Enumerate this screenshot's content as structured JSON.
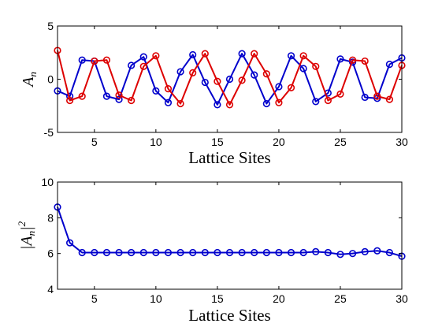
{
  "chart_data": [
    {
      "type": "line",
      "xlabel": "Lattice Sites",
      "ylabel": {
        "base": "A",
        "sub": "n"
      },
      "xlim": [
        2,
        30
      ],
      "ylim": [
        -5,
        5
      ],
      "xticks": [
        "5",
        "10",
        "15",
        "20",
        "25",
        "30"
      ],
      "yticks": [
        "5",
        "0",
        "-5"
      ],
      "grid": false,
      "x": [
        2,
        3,
        4,
        5,
        6,
        7,
        8,
        9,
        10,
        11,
        12,
        13,
        14,
        15,
        16,
        17,
        18,
        19,
        20,
        21,
        22,
        23,
        24,
        25,
        26,
        27,
        28,
        29,
        30
      ],
      "series": [
        {
          "color": "#0000cc",
          "marker": "circle",
          "values": [
            -1.1,
            -1.6,
            1.8,
            1.7,
            -1.6,
            -1.9,
            1.3,
            2.1,
            -1.1,
            -2.2,
            0.7,
            2.3,
            -0.3,
            -2.4,
            0.0,
            2.4,
            0.4,
            -2.3,
            -0.7,
            2.2,
            1.0,
            -2.1,
            -1.3,
            1.9,
            1.6,
            -1.7,
            -1.8,
            1.4,
            2.0
          ]
        },
        {
          "color": "#dd0000",
          "marker": "circle",
          "values": [
            2.7,
            -2.0,
            -1.6,
            1.7,
            1.8,
            -1.5,
            -2.0,
            1.2,
            2.2,
            -0.9,
            -2.3,
            0.6,
            2.4,
            -0.2,
            -2.4,
            -0.1,
            2.4,
            0.5,
            -2.2,
            -0.8,
            2.2,
            1.2,
            -2.0,
            -1.4,
            1.8,
            1.7,
            -1.6,
            -1.9,
            1.3
          ]
        }
      ]
    },
    {
      "type": "line",
      "xlabel": "Lattice Sites",
      "ylabel": {
        "base": "|A",
        "sub": "n",
        "tail": "|",
        "sup": "2"
      },
      "xlim": [
        2,
        30
      ],
      "ylim": [
        4,
        10
      ],
      "xticks": [
        "5",
        "10",
        "15",
        "20",
        "25",
        "30"
      ],
      "yticks": [
        "10",
        "8",
        "6",
        "4"
      ],
      "grid": false,
      "x": [
        2,
        3,
        4,
        5,
        6,
        7,
        8,
        9,
        10,
        11,
        12,
        13,
        14,
        15,
        16,
        17,
        18,
        19,
        20,
        21,
        22,
        23,
        24,
        25,
        26,
        27,
        28,
        29,
        30
      ],
      "series": [
        {
          "color": "#0000cc",
          "marker": "circle",
          "values": [
            8.6,
            6.6,
            6.05,
            6.05,
            6.05,
            6.05,
            6.05,
            6.05,
            6.05,
            6.05,
            6.05,
            6.05,
            6.05,
            6.05,
            6.05,
            6.05,
            6.05,
            6.05,
            6.05,
            6.05,
            6.05,
            6.1,
            6.05,
            5.95,
            6.0,
            6.1,
            6.15,
            6.05,
            5.85
          ]
        }
      ]
    }
  ]
}
